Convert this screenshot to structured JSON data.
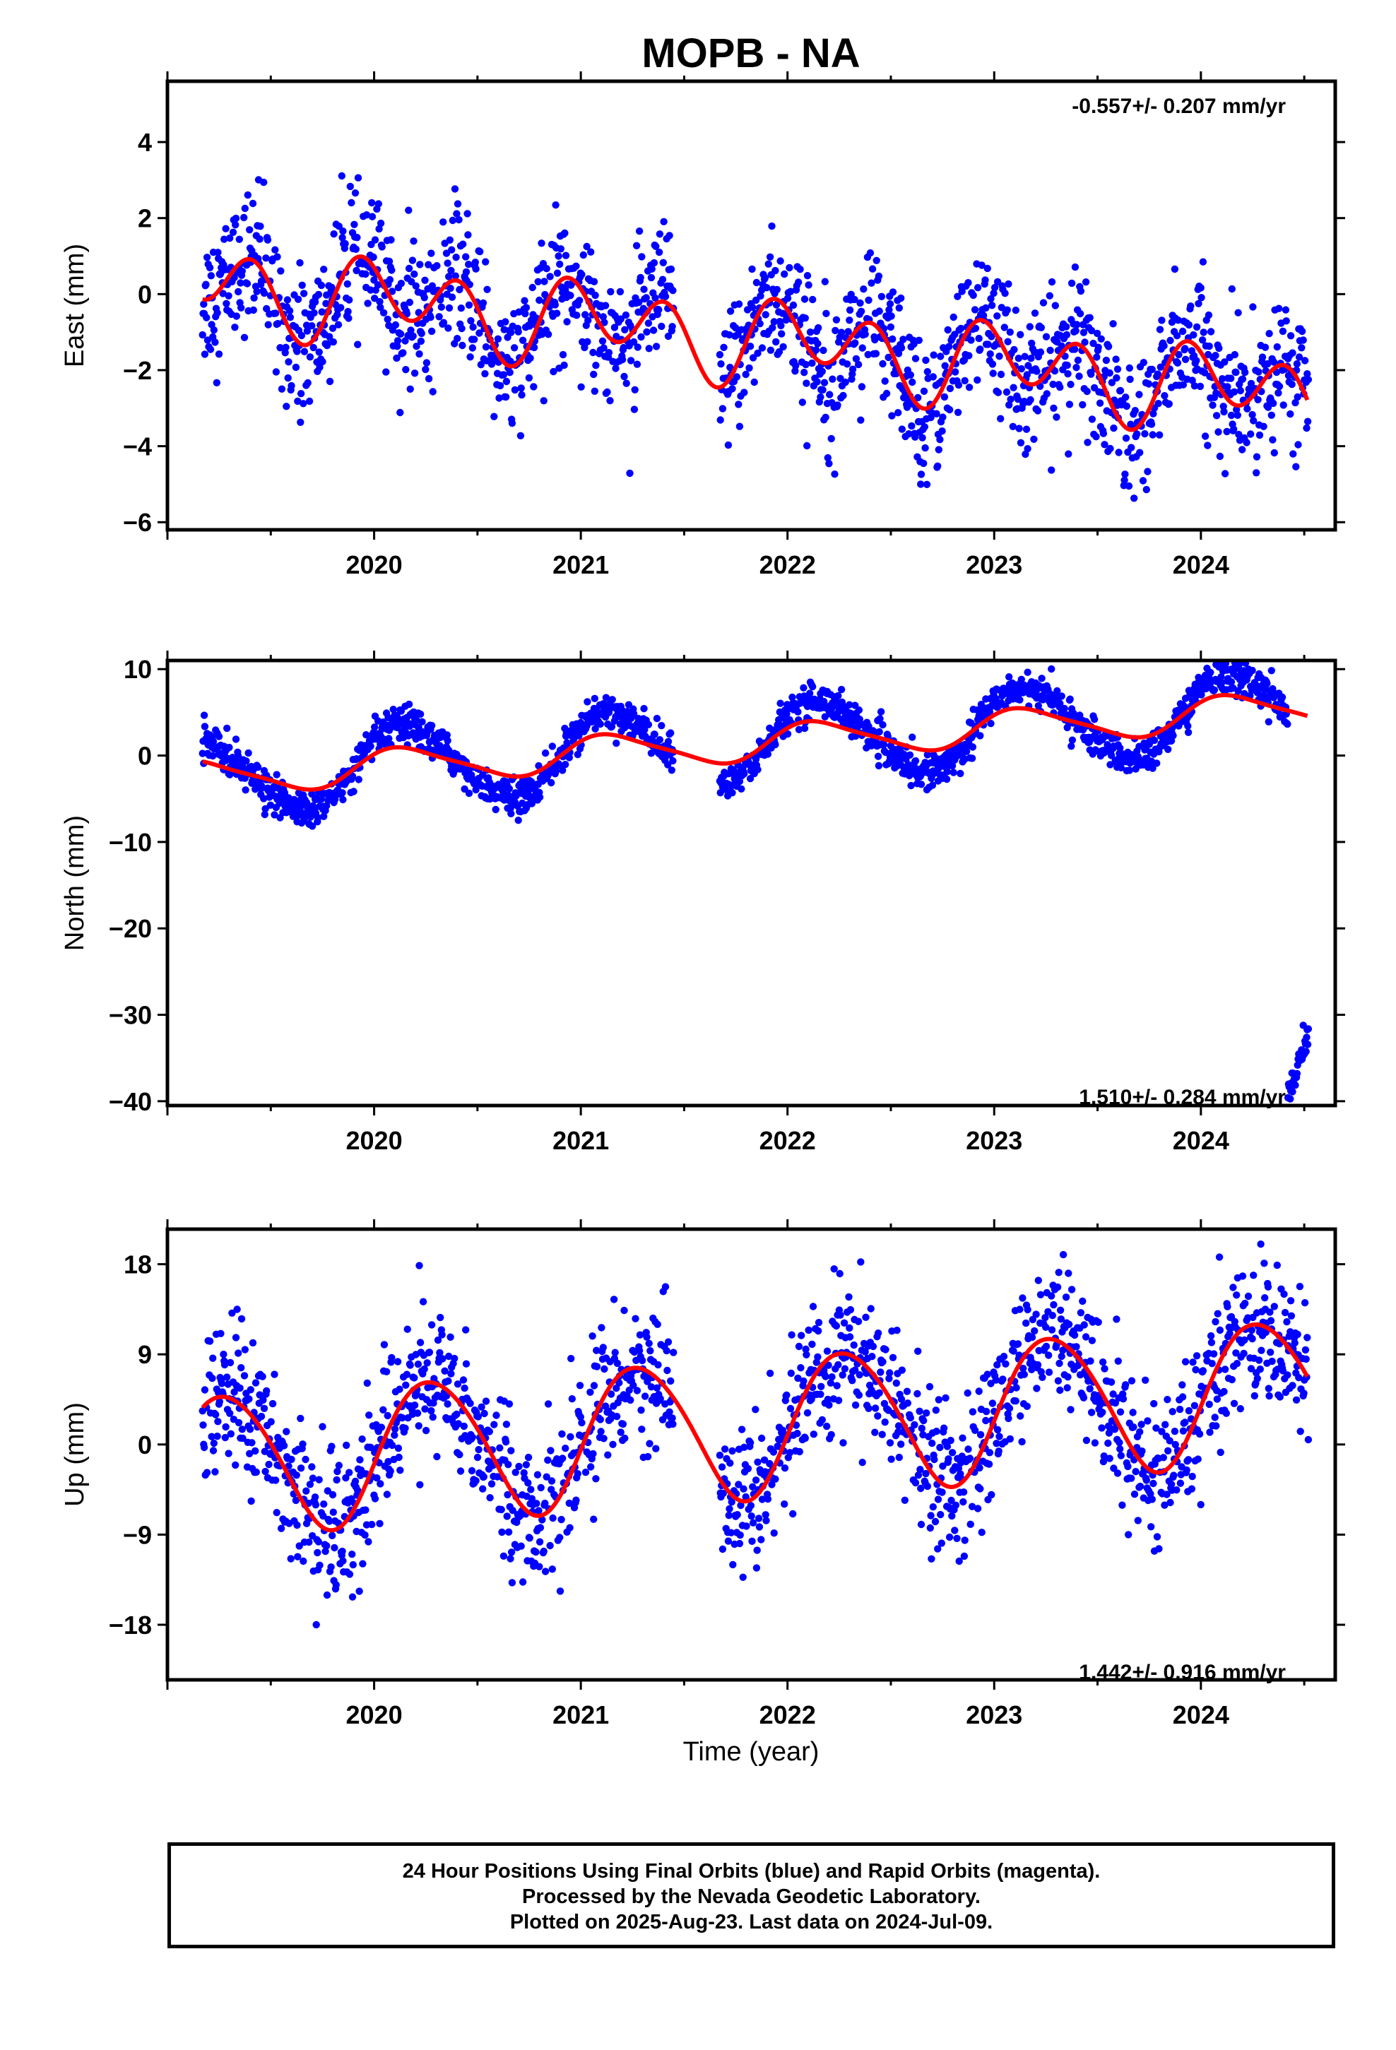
{
  "title": "MOPB - NA",
  "xlabel": "Time (year)",
  "footer": [
    "24 Hour Positions Using Final Orbits (blue) and Rapid Orbits (magenta).",
    "Processed by the Nevada Geodetic Laboratory.",
    "Plotted on 2025-Aug-23. Last data on 2024-Jul-09."
  ],
  "colors": {
    "points": "#0000ff",
    "model": "#ff0000",
    "frame": "#000000"
  },
  "chart_data": [
    {
      "type": "scatter",
      "ylabel": "East (mm)",
      "rate_text": "-0.557+/- 0.207 mm/yr",
      "xlim": [
        2019.0,
        2024.65
      ],
      "ylim": [
        -6.2,
        5.6
      ],
      "yticks": [
        4,
        2,
        0,
        -2,
        -4,
        -6
      ],
      "xticks": [
        2020,
        2021,
        2022,
        2023,
        2024
      ],
      "data_span": [
        2019.17,
        2024.52
      ],
      "gaps": [
        [
          2021.45,
          2021.67
        ]
      ],
      "model": {
        "mean": 0.3,
        "trend": -0.557,
        "t0": 2019.17,
        "annual": 0.5,
        "annual_phase": 0.9,
        "semiannual": 0.9,
        "semiannual_phase": 2.6
      },
      "scatter_sd": 0.9
    },
    {
      "type": "scatter",
      "ylabel": "North (mm)",
      "rate_text": "1.510+/- 0.284 mm/yr",
      "xlim": [
        2019.0,
        2024.65
      ],
      "ylim": [
        -40.5,
        11.0
      ],
      "yticks": [
        10,
        0,
        -10,
        -20,
        -30,
        -40
      ],
      "xticks": [
        2020,
        2021,
        2022,
        2023,
        2024
      ],
      "data_span": [
        2019.17,
        2024.52
      ],
      "gaps": [
        [
          2021.45,
          2021.67
        ]
      ],
      "model": {
        "mean": -2.6,
        "trend": 1.51,
        "t0": 2019.17,
        "annual": 2.0,
        "annual_phase": 0.6,
        "semiannual": 0.4,
        "semiannual_phase": 1.2
      },
      "scatter_sd": 1.0,
      "offset_event": {
        "start": 2024.42,
        "values": [
          -39.5,
          -32.5
        ]
      }
    },
    {
      "type": "scatter",
      "ylabel": "Up (mm)",
      "rate_text": "1.442+/- 0.916 mm/yr",
      "xlim": [
        2019.0,
        2024.65
      ],
      "ylim": [
        -23.5,
        21.5
      ],
      "yticks": [
        18,
        9,
        0,
        -9,
        -18
      ],
      "xticks": [
        2020,
        2021,
        2022,
        2023,
        2024
      ],
      "data_span": [
        2019.17,
        2024.52
      ],
      "gaps": [
        [
          2021.45,
          2021.67
        ]
      ],
      "model": {
        "mean": -2.0,
        "trend": 1.442,
        "t0": 2019.17,
        "annual": 7.0,
        "annual_phase": -0.2,
        "semiannual": 0.6,
        "semiannual_phase": 0.4
      },
      "scatter_sd": 3.6
    }
  ]
}
